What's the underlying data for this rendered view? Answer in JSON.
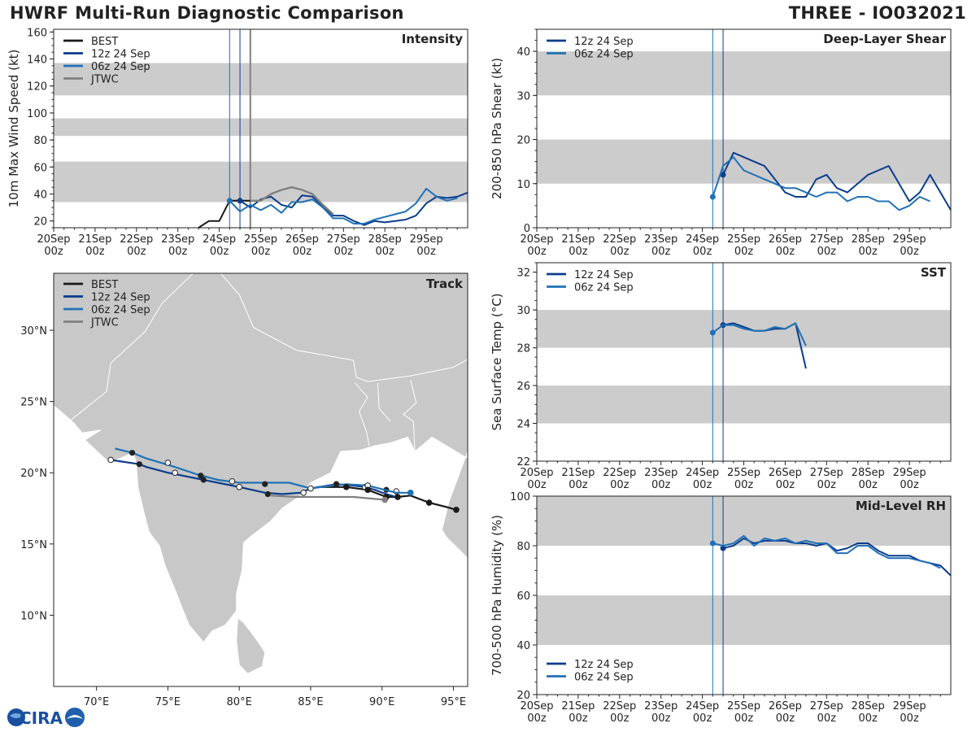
{
  "header": {
    "title": "HWRF Multi-Run Diagnostic Comparison",
    "storm_id": "THREE - IO032021"
  },
  "colors": {
    "best": "#1a1a1a",
    "run12": "#0b3d8c",
    "run06": "#2171b5",
    "jtwc": "#808080",
    "band": "#cccccc",
    "land": "#c8c8c8",
    "land_edge": "#ffffff"
  },
  "time_axis": {
    "labels_top": [
      "20Sep",
      "21Sep",
      "22Sep",
      "23Sep",
      "24Sep",
      "25Sep",
      "26Sep",
      "27Sep",
      "28Sep",
      "29Sep"
    ],
    "labels_bottom": [
      "00z",
      "00z",
      "00z",
      "00z",
      "00z",
      "00z",
      "00z",
      "00z",
      "00z",
      "00z"
    ],
    "init_06": 4.25,
    "init_12": 4.5,
    "jtwc_line": 4.75
  },
  "chart_data": [
    {
      "id": "intensity",
      "type": "line",
      "title": "Intensity",
      "ylabel": "10m Max Wind Speed (kt)",
      "ylim": [
        15,
        162
      ],
      "yticks": [
        "20",
        "40",
        "60",
        "80",
        "100",
        "120",
        "140",
        "160"
      ],
      "ytick_values": [
        20,
        40,
        60,
        80,
        100,
        120,
        140,
        160
      ],
      "bands": [
        [
          34,
          64
        ],
        [
          83,
          96
        ],
        [
          113,
          137
        ]
      ],
      "legend": [
        "BEST",
        "12z 24 Sep",
        "06z 24 Sep",
        "JTWC"
      ],
      "series": [
        {
          "name": "BEST",
          "color": "best",
          "x": [
            3.5,
            3.75,
            4.0,
            4.25,
            4.5,
            4.75
          ],
          "values": [
            15,
            20,
            20,
            35,
            35,
            35
          ]
        },
        {
          "name": "12z 24 Sep",
          "color": "run12",
          "marker": true,
          "x": [
            4.5,
            4.75,
            5.0,
            5.25,
            5.5,
            5.75,
            6.0,
            6.25,
            6.5,
            6.75,
            7.0,
            7.25,
            7.5,
            7.75,
            8.0,
            8.25,
            8.5,
            8.75,
            9.0,
            9.25,
            9.5,
            9.75,
            10.0
          ],
          "values": [
            35,
            30,
            36,
            38,
            32,
            30,
            39,
            38,
            31,
            24,
            24,
            20,
            17,
            20,
            19,
            20,
            21,
            24,
            33,
            38,
            37,
            38,
            41
          ]
        },
        {
          "name": "06z 24 Sep",
          "color": "run06",
          "marker": true,
          "x": [
            4.25,
            4.5,
            4.75,
            5.0,
            5.25,
            5.5,
            5.75,
            6.0,
            6.25,
            6.5,
            6.75,
            7.0,
            7.25,
            7.5,
            7.75,
            8.0,
            8.25,
            8.5,
            8.75,
            9.0,
            9.25,
            9.5,
            9.75
          ],
          "values": [
            35,
            27,
            32,
            28,
            32,
            26,
            34,
            34,
            36,
            30,
            22,
            22,
            18,
            18,
            21,
            23,
            25,
            27,
            33,
            44,
            38,
            35,
            37
          ]
        },
        {
          "name": "JTWC",
          "color": "jtwc",
          "x": [
            4.75,
            5.0,
            5.25,
            5.5,
            5.75,
            6.0,
            6.25,
            6.5,
            6.75
          ],
          "values": [
            35,
            35,
            40,
            43,
            45,
            43,
            40,
            32,
            25
          ]
        }
      ]
    },
    {
      "id": "shear",
      "type": "line",
      "title": "Deep-Layer Shear",
      "ylabel": "200-850 hPa Shear (kt)",
      "ylim": [
        0,
        45
      ],
      "yticks": [
        "0",
        "10",
        "20",
        "30",
        "40"
      ],
      "ytick_values": [
        0,
        10,
        20,
        30,
        40
      ],
      "bands": [
        [
          10,
          20
        ],
        [
          30,
          40
        ]
      ],
      "legend": [
        "12z 24 Sep",
        "06z 24 Sep"
      ],
      "series": [
        {
          "name": "12z 24 Sep",
          "color": "run12",
          "marker": true,
          "x": [
            4.5,
            4.75,
            5.0,
            5.25,
            5.5,
            5.75,
            6.0,
            6.25,
            6.5,
            6.75,
            7.0,
            7.25,
            7.5,
            7.75,
            8.0,
            8.25,
            8.5,
            8.75,
            9.0,
            9.25,
            9.5,
            9.75,
            10.0
          ],
          "values": [
            12,
            17,
            16,
            15,
            14,
            11,
            8,
            7,
            7,
            11,
            12,
            9,
            8,
            10,
            12,
            13,
            14,
            10,
            6,
            8,
            12,
            8,
            4
          ]
        },
        {
          "name": "06z 24 Sep",
          "color": "run06",
          "marker": true,
          "x": [
            4.25,
            4.5,
            4.75,
            5.0,
            5.25,
            5.5,
            5.75,
            6.0,
            6.25,
            6.5,
            6.75,
            7.0,
            7.25,
            7.5,
            7.75,
            8.0,
            8.25,
            8.5,
            8.75,
            9.0,
            9.25,
            9.5
          ],
          "values": [
            7,
            14,
            16,
            13,
            12,
            11,
            10,
            9,
            9,
            8,
            7,
            8,
            8,
            6,
            7,
            7,
            6,
            6,
            4,
            5,
            7,
            6
          ]
        }
      ]
    },
    {
      "id": "sst",
      "type": "line",
      "title": "SST",
      "ylabel": "Sea Surface Temp (°C)",
      "ylim": [
        22,
        32.5
      ],
      "yticks": [
        "22",
        "24",
        "26",
        "28",
        "30",
        "32"
      ],
      "ytick_values": [
        22,
        24,
        26,
        28,
        30,
        32
      ],
      "bands": [
        [
          24,
          26
        ],
        [
          28,
          30
        ]
      ],
      "legend": [
        "12z 24 Sep",
        "06z 24 Sep"
      ],
      "series": [
        {
          "name": "12z 24 Sep",
          "color": "run12",
          "marker": true,
          "x": [
            4.5,
            4.75,
            5.0,
            5.25,
            5.5,
            5.75,
            6.0,
            6.25,
            6.5
          ],
          "values": [
            29.2,
            29.3,
            29.1,
            28.9,
            28.9,
            29.0,
            29.0,
            29.3,
            26.9
          ]
        },
        {
          "name": "06z 24 Sep",
          "color": "run06",
          "marker": true,
          "x": [
            4.25,
            4.5,
            4.75,
            5.0,
            5.25,
            5.5,
            5.75,
            6.0,
            6.25,
            6.5
          ],
          "values": [
            28.8,
            29.2,
            29.2,
            29.0,
            28.9,
            28.9,
            29.1,
            29.0,
            29.3,
            28.1
          ]
        }
      ]
    },
    {
      "id": "rh",
      "type": "line",
      "title": "Mid-Level RH",
      "ylabel": "700-500 hPa Humidity (%)",
      "ylim": [
        20,
        100
      ],
      "yticks": [
        "20",
        "40",
        "60",
        "80",
        "100"
      ],
      "ytick_values": [
        20,
        40,
        60,
        80,
        100
      ],
      "bands": [
        [
          40,
          60
        ],
        [
          80,
          100
        ]
      ],
      "legend": [
        "12z 24 Sep",
        "06z 24 Sep"
      ],
      "legend_pos": "bottom-left",
      "series": [
        {
          "name": "12z 24 Sep",
          "color": "run12",
          "marker": true,
          "x": [
            4.5,
            4.75,
            5.0,
            5.25,
            5.5,
            5.75,
            6.0,
            6.25,
            6.5,
            6.75,
            7.0,
            7.25,
            7.5,
            7.75,
            8.0,
            8.25,
            8.5,
            8.75,
            9.0,
            9.25,
            9.5,
            9.75,
            10.0
          ],
          "values": [
            79,
            80,
            83,
            81,
            82,
            82,
            82,
            81,
            81,
            80,
            81,
            78,
            79,
            81,
            81,
            78,
            76,
            76,
            76,
            74,
            73,
            72,
            68
          ]
        },
        {
          "name": "06z 24 Sep",
          "color": "run06",
          "marker": true,
          "x": [
            4.25,
            4.5,
            4.75,
            5.0,
            5.25,
            5.5,
            5.75,
            6.0,
            6.25,
            6.5,
            6.75,
            7.0,
            7.25,
            7.5,
            7.75,
            8.0,
            8.25,
            8.5,
            8.75,
            9.0,
            9.25,
            9.5,
            9.75
          ],
          "values": [
            81,
            80,
            81,
            84,
            80,
            83,
            82,
            83,
            81,
            82,
            81,
            81,
            77,
            77,
            80,
            80,
            77,
            75,
            75,
            75,
            74,
            73,
            71
          ]
        }
      ]
    },
    {
      "id": "track",
      "type": "scatter",
      "title": "Track",
      "xlim": [
        67,
        96
      ],
      "ylim": [
        5,
        34
      ],
      "xticks": [
        "70°E",
        "75°E",
        "80°E",
        "85°E",
        "90°E",
        "95°E"
      ],
      "xtick_values": [
        70,
        75,
        80,
        85,
        90,
        95
      ],
      "yticks": [
        "10°N",
        "15°N",
        "20°N",
        "25°N",
        "30°N"
      ],
      "ytick_values": [
        10,
        15,
        20,
        25,
        30
      ],
      "legend": [
        "BEST",
        "12z 24 Sep",
        "06z 24 Sep",
        "JTWC"
      ],
      "series": [
        {
          "name": "BEST",
          "color": "best",
          "lon": [
            95.2,
            94.5,
            93.3,
            92.0,
            91.1,
            90.3,
            89.0,
            87.5,
            85.5
          ],
          "lat": [
            17.4,
            17.6,
            17.9,
            18.4,
            18.3,
            18.3,
            18.8,
            19.0,
            19.0
          ]
        },
        {
          "name": "12z 24 Sep",
          "color": "run12",
          "lon": [
            91.0,
            90.3,
            89.5,
            88.8,
            88.0,
            86.8,
            85.0,
            84.3,
            83.0,
            81.8,
            80.0,
            78.5,
            77.5,
            76.0,
            75.0,
            73.5,
            73.0,
            71.0
          ],
          "lat": [
            18.3,
            18.5,
            18.8,
            19.0,
            19.1,
            19.2,
            18.9,
            18.6,
            18.5,
            18.6,
            19.0,
            19.3,
            19.5,
            19.8,
            20.0,
            20.4,
            20.6,
            20.9
          ],
          "open": [
            true,
            false,
            true,
            false,
            true,
            false,
            true,
            false,
            true,
            false,
            true,
            false,
            true,
            false,
            true,
            false,
            true,
            false
          ],
          "filled_pts": [
            [
              90.3,
              18.8
            ],
            [
              86.8,
              19.2
            ],
            [
              82.0,
              18.5
            ],
            [
              77.5,
              19.5
            ],
            [
              73.0,
              20.6
            ]
          ],
          "open_pts": [
            [
              91.0,
              18.7
            ],
            [
              88.8,
              19.0
            ],
            [
              84.5,
              18.6
            ],
            [
              80.0,
              19.0
            ],
            [
              75.5,
              20.0
            ],
            [
              71.0,
              20.9
            ]
          ]
        },
        {
          "name": "06z 24 Sep",
          "color": "run06",
          "lon": [
            92.0,
            91.0,
            90.2,
            89.0,
            87.5,
            86.5,
            85.0,
            83.5,
            82.0,
            80.0,
            78.5,
            77.0,
            75.5,
            73.5,
            72.5,
            71.3
          ],
          "lat": [
            18.6,
            18.6,
            18.8,
            19.1,
            19.2,
            19.1,
            18.9,
            19.3,
            19.3,
            19.3,
            19.5,
            19.9,
            20.4,
            21.0,
            21.4,
            21.7
          ],
          "filled_pts": [
            [
              92.0,
              18.6
            ],
            [
              86.8,
              19.2
            ],
            [
              81.8,
              19.2
            ],
            [
              77.3,
              19.8
            ],
            [
              72.5,
              21.4
            ]
          ],
          "open_pts": [
            [
              89.0,
              19.1
            ],
            [
              85.0,
              18.9
            ],
            [
              79.5,
              19.4
            ],
            [
              75.0,
              20.7
            ]
          ]
        },
        {
          "name": "JTWC",
          "color": "jtwc",
          "lon": [
            90.2,
            88.0,
            86.0,
            84.0,
            82.2
          ],
          "lat": [
            18.1,
            18.3,
            18.3,
            18.3,
            18.4
          ]
        }
      ],
      "best_pts": [
        [
          95.2,
          17.4
        ],
        [
          93.3,
          17.9
        ],
        [
          91.1,
          18.3
        ],
        [
          90.3,
          18.3
        ],
        [
          89.0,
          18.8
        ],
        [
          87.5,
          19.0
        ]
      ]
    }
  ],
  "logo": {
    "text": "CIRA"
  }
}
